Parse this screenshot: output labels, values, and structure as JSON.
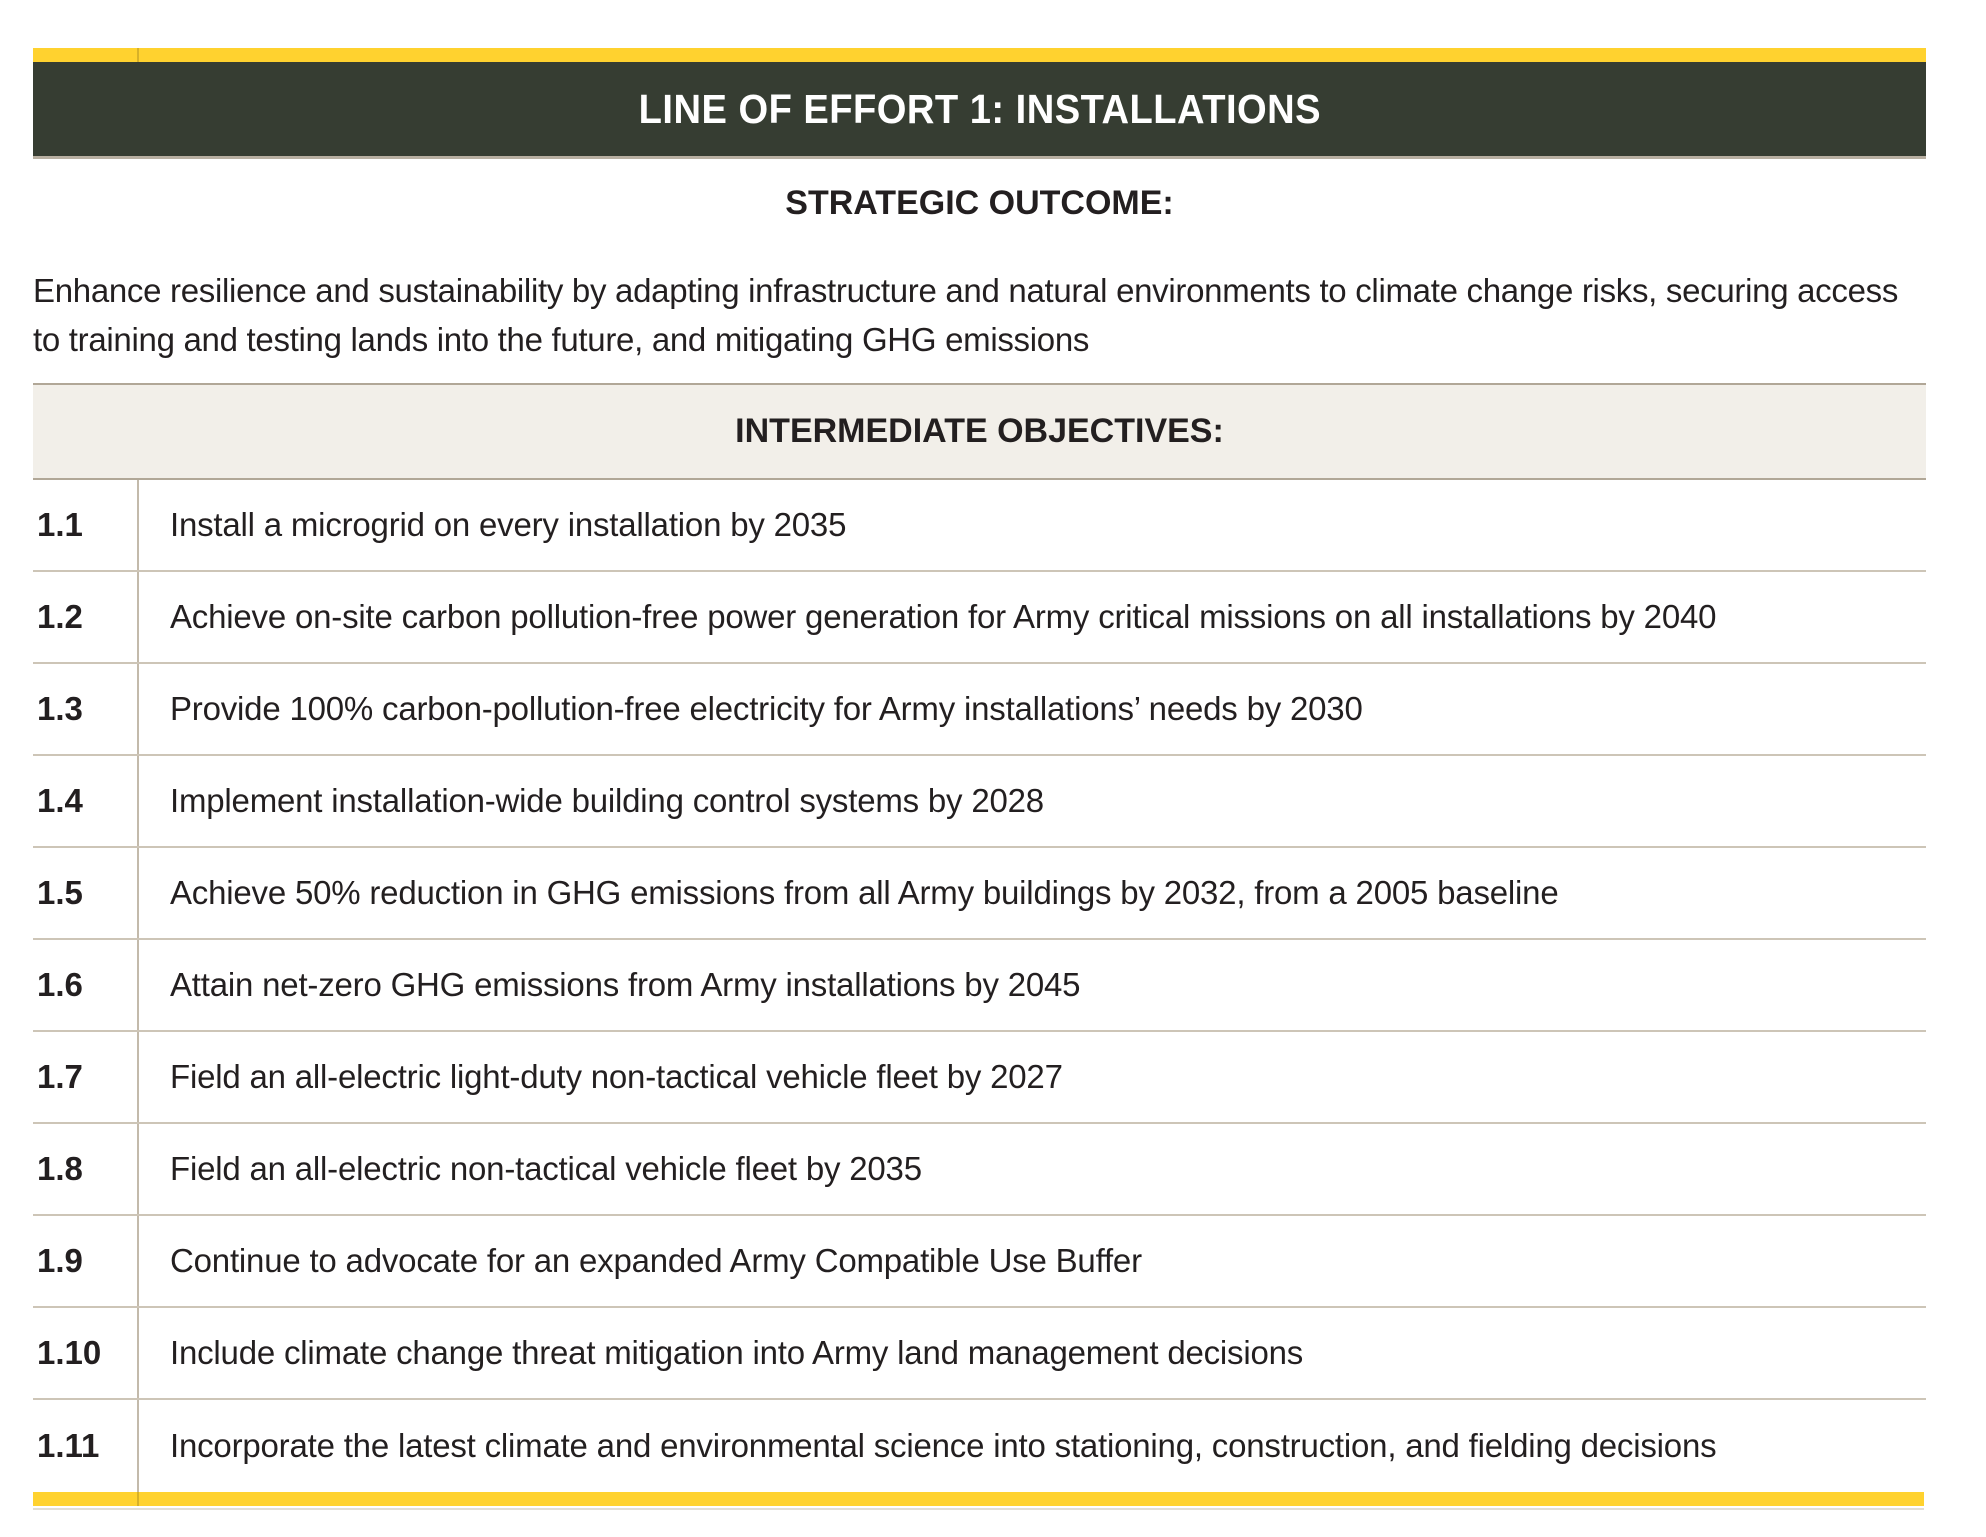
{
  "colors": {
    "accent_yellow": "#FFD22F",
    "header_green": "#363D32",
    "band_background": "#F2EFE9",
    "border_strong": "#B1A797",
    "border_light": "#CDC5B7",
    "text": "#231F20"
  },
  "header": {
    "title": "LINE OF EFFORT 1: INSTALLATIONS"
  },
  "strategic_outcome": {
    "heading": "STRATEGIC OUTCOME:",
    "text": "Enhance resilience and sustainability by adapting infrastructure and natural environments to climate change risks, securing access to training and testing lands into the future, and mitigating GHG emissions"
  },
  "objectives": {
    "heading": "INTERMEDIATE OBJECTIVES:",
    "items": [
      {
        "id": "1.1",
        "text": "Install a microgrid on every installation by 2035"
      },
      {
        "id": "1.2",
        "text": "Achieve on-site carbon pollution-free power generation for Army critical missions on all installations by 2040"
      },
      {
        "id": "1.3",
        "text": "Provide 100% carbon-pollution-free electricity for Army installations’ needs by 2030"
      },
      {
        "id": "1.4",
        "text": "Implement installation-wide building control systems by 2028"
      },
      {
        "id": "1.5",
        "text": "Achieve 50% reduction in GHG emissions from all Army buildings by 2032, from a 2005 baseline"
      },
      {
        "id": "1.6",
        "text": "Attain net-zero GHG emissions from Army installations by 2045"
      },
      {
        "id": "1.7",
        "text": "Field an all-electric light-duty non-tactical vehicle fleet by 2027"
      },
      {
        "id": "1.8",
        "text": "Field an all-electric non-tactical vehicle fleet by 2035"
      },
      {
        "id": "1.9",
        "text": "Continue to advocate for an expanded Army Compatible Use Buffer"
      },
      {
        "id": "1.10",
        "text": "Include climate change threat mitigation into Army land management decisions"
      },
      {
        "id": "1.11",
        "text": "Incorporate the latest climate and environmental science into stationing, construction, and fielding decisions"
      }
    ]
  }
}
